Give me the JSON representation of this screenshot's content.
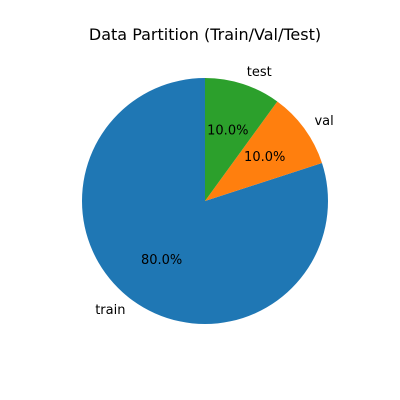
{
  "chart_data": {
    "type": "pie",
    "title": "Data Partition (Train/Val/Test)",
    "slices": [
      {
        "label": "train",
        "value": 80.0,
        "percent_label": "80.0%",
        "color": "#1f77b4"
      },
      {
        "label": "val",
        "value": 10.0,
        "percent_label": "10.0%",
        "color": "#ff7f0e"
      },
      {
        "label": "test",
        "value": 10.0,
        "percent_label": "10.0%",
        "color": "#2ca02c"
      }
    ],
    "start_angle_deg": 90,
    "direction": "counterclockwise",
    "legend": "none"
  }
}
